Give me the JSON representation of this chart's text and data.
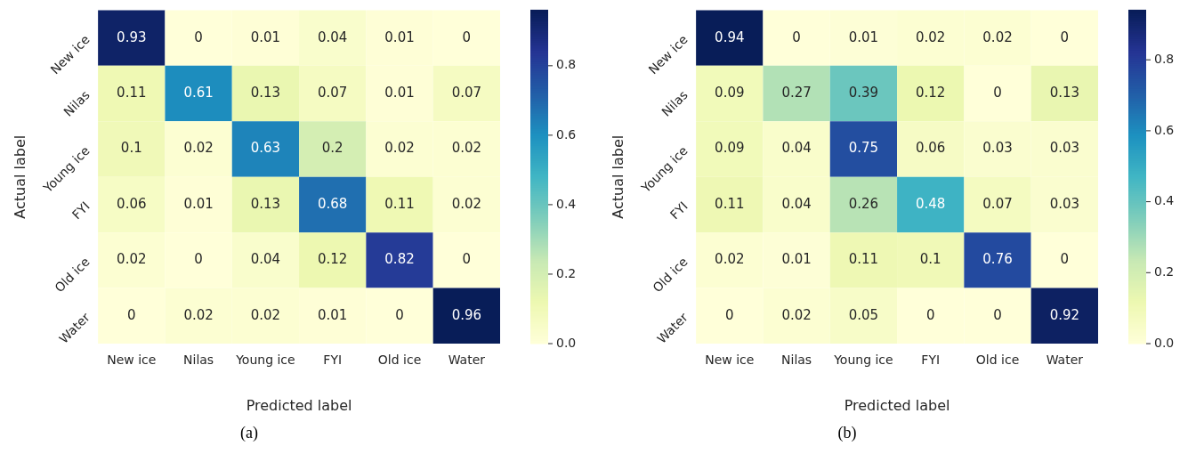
{
  "chart_data": [
    {
      "type": "heatmap",
      "xlabel": "Predicted label",
      "ylabel": "Actual label",
      "annotations": [
        "(a)"
      ],
      "categories": [
        "New ice",
        "Nilas",
        "Young ice",
        "FYI",
        "Old ice",
        "Water"
      ],
      "y_categories": [
        "New ice",
        "Nilas",
        "Young ice",
        "FYI",
        "Old ice",
        "Water"
      ],
      "cells": [
        [
          0.93,
          0,
          0.01,
          0.04,
          0.01,
          0
        ],
        [
          0.11,
          0.61,
          0.13,
          0.07,
          0.01,
          0.07
        ],
        [
          0.1,
          0.02,
          0.63,
          0.2,
          0.02,
          0.02
        ],
        [
          0.06,
          0.01,
          0.13,
          0.68,
          0.11,
          0.02
        ],
        [
          0.02,
          0,
          0.04,
          0.12,
          0.82,
          0
        ],
        [
          0,
          0.02,
          0.02,
          0.01,
          0,
          0.96
        ]
      ],
      "clim": [
        0,
        0.96
      ],
      "cticks": [
        {
          "value": 0,
          "label": "0.0"
        },
        0.2,
        0.4,
        0.6,
        0.8
      ],
      "data_labels": true
    },
    {
      "type": "heatmap",
      "xlabel": "Predicted label",
      "ylabel": "Actual label",
      "annotations": [
        "(b)"
      ],
      "categories": [
        "New ice",
        "Nilas",
        "Young ice",
        "FYI",
        "Old ice",
        "Water"
      ],
      "y_categories": [
        "New ice",
        "Nilas",
        "Young ice",
        "FYI",
        "Old ice",
        "Water"
      ],
      "cells": [
        [
          0.94,
          0,
          0.01,
          0.02,
          0.02,
          0
        ],
        [
          0.09,
          0.27,
          0.39,
          0.12,
          0,
          0.13
        ],
        [
          0.09,
          0.04,
          0.75,
          0.06,
          0.03,
          0.03
        ],
        [
          0.11,
          0.04,
          0.26,
          0.48,
          0.07,
          0.03
        ],
        [
          0.02,
          0.01,
          0.11,
          0.1,
          0.76,
          0
        ],
        [
          0,
          0.02,
          0.05,
          0,
          0,
          0.92
        ]
      ],
      "clim": [
        0,
        0.94
      ],
      "cticks": [
        {
          "value": 0,
          "label": "0.0"
        },
        0.2,
        0.4,
        0.6,
        0.8
      ],
      "data_labels": true
    }
  ]
}
